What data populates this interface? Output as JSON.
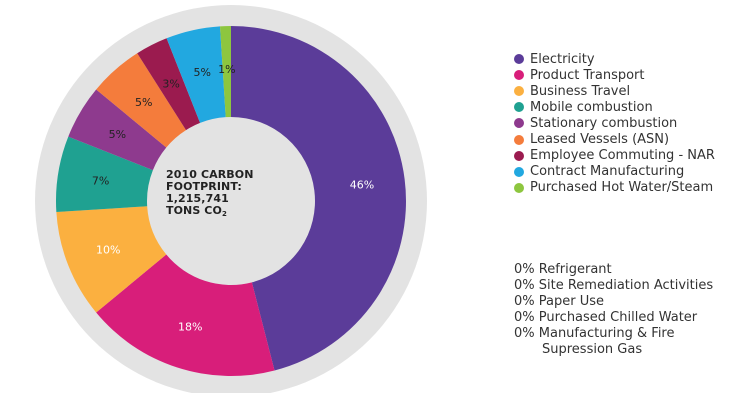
{
  "chart_data": {
    "type": "pie",
    "variant": "donut",
    "center_label": {
      "line1": "2010 CARBON",
      "line2": "FOOTPRINT:",
      "line3": "1,215,741",
      "line4_main": "TONS CO",
      "line4_sub": "2"
    },
    "slices": [
      {
        "name": "Electricity",
        "value": 46,
        "label": "46%",
        "color": "#5b3c99",
        "label_color": "#ffffff"
      },
      {
        "name": "Product Transport",
        "value": 18,
        "label": "18%",
        "color": "#d81e7a",
        "label_color": "#ffffff"
      },
      {
        "name": "Business Travel",
        "value": 10,
        "label": "10%",
        "color": "#fbb040",
        "label_color": "#ffffff"
      },
      {
        "name": "Mobile combustion",
        "value": 7,
        "label": "7%",
        "color": "#1fa191",
        "label_color": "#222222"
      },
      {
        "name": "Stationary combustion",
        "value": 5,
        "label": "5%",
        "color": "#8e3a8e",
        "label_color": "#222222"
      },
      {
        "name": "Leased Vessels (ASN)",
        "value": 5,
        "label": "5%",
        "color": "#f47c3c",
        "label_color": "#222222"
      },
      {
        "name": "Employee Commuting - NAR",
        "value": 3,
        "label": "3%",
        "color": "#9b1b4f",
        "label_color": "#222222"
      },
      {
        "name": "Contract Manufacturing",
        "value": 5,
        "label": "5%",
        "color": "#22a8e0",
        "label_color": "#222222"
      },
      {
        "name": "Purchased Hot Water/Steam",
        "value": 1,
        "label": "1%",
        "color": "#8dc63f",
        "label_color": "#222222"
      }
    ],
    "outer_ring_color": "#e3e3e3",
    "zero_items": [
      {
        "text": "0% Refrigerant"
      },
      {
        "text": "0% Site Remediation Activities"
      },
      {
        "text": "0% Paper Use"
      },
      {
        "text": "0% Purchased Chilled Water"
      },
      {
        "text": "0% Manufacturing & Fire",
        "cont": "Supression Gas"
      }
    ]
  }
}
